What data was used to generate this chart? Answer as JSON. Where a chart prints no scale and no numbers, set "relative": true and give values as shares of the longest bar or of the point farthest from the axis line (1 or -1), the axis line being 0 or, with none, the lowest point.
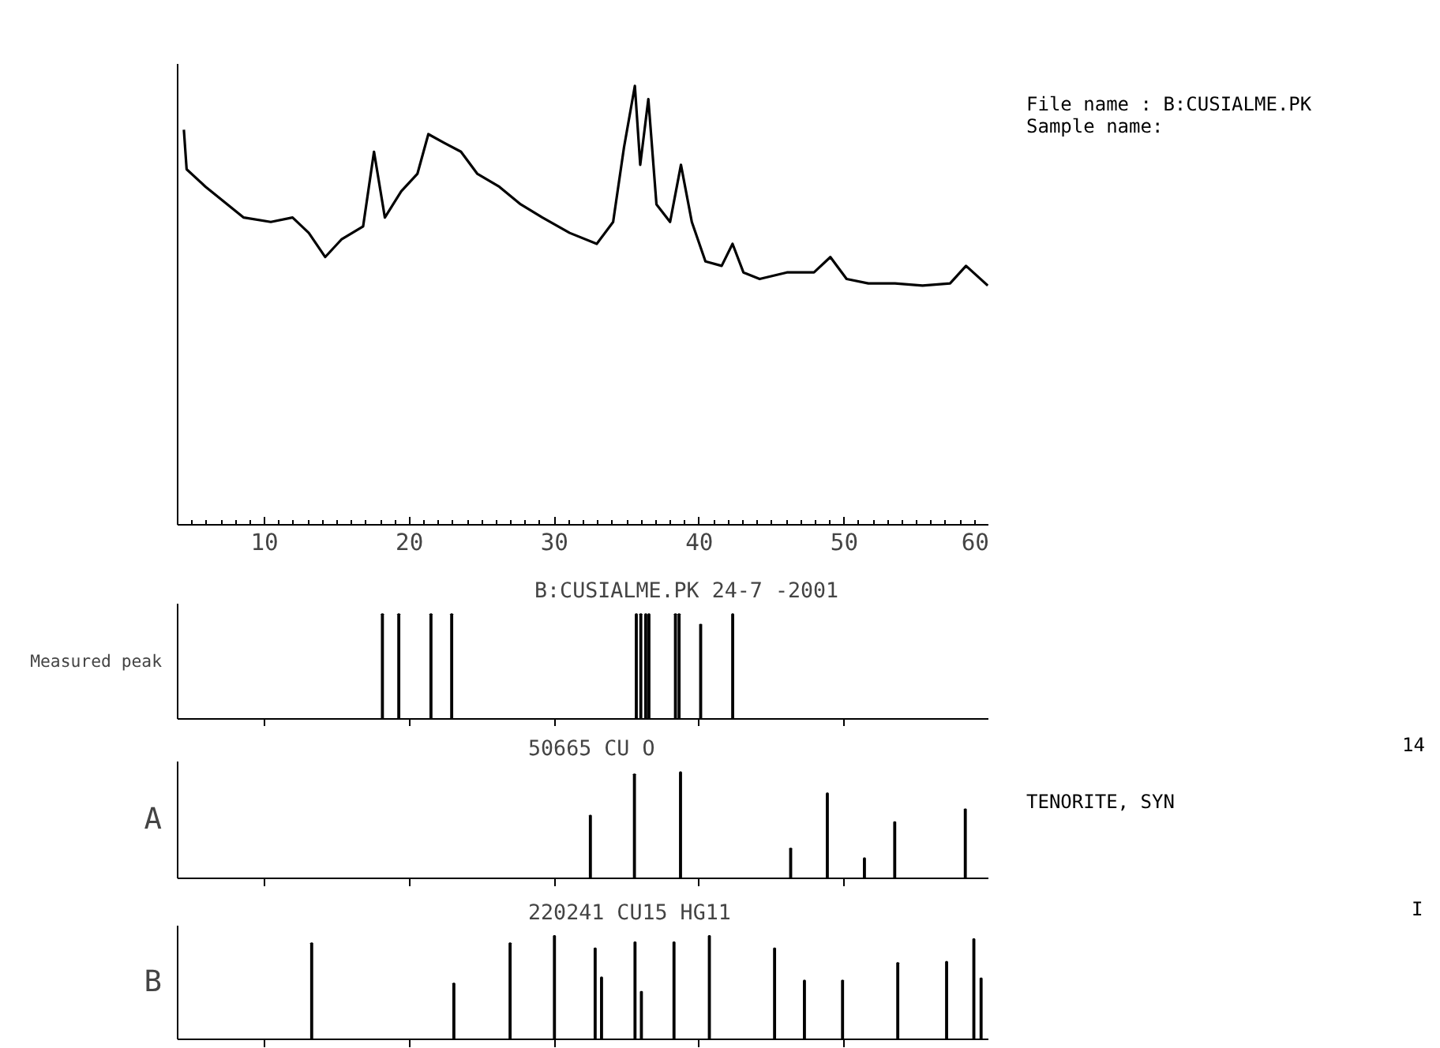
{
  "chart_data": [
    {
      "type": "line",
      "relative": true,
      "color": "#000000",
      "xlim": [
        4,
        60
      ],
      "xticks": [
        10,
        20,
        30,
        40,
        50,
        60
      ],
      "grid": false,
      "tick_labels": "x",
      "x": [
        4.43,
        4.62,
        5.93,
        7.43,
        8.56,
        10.43,
        11.93,
        13.05,
        14.18,
        15.3,
        16.8,
        17.55,
        18.3,
        19.43,
        20.55,
        21.3,
        22.4,
        23.55,
        24.67,
        26.2,
        27.67,
        29.17,
        31.05,
        32.92,
        34.05,
        34.8,
        35.55,
        35.92,
        36.48,
        37.04,
        37.98,
        38.73,
        39.48,
        40.42,
        41.54,
        42.29,
        43.04,
        44.16,
        46.04,
        47.91,
        49.04,
        50.16,
        51.66,
        53.5,
        55.4,
        57.3,
        58.4,
        59.9
      ],
      "values": [
        0.9,
        0.81,
        0.77,
        0.73,
        0.7,
        0.69,
        0.7,
        0.665,
        0.61,
        0.65,
        0.68,
        0.85,
        0.7,
        0.76,
        0.8,
        0.89,
        0.87,
        0.85,
        0.8,
        0.77,
        0.73,
        0.7,
        0.665,
        0.64,
        0.69,
        0.86,
        1.0,
        0.82,
        0.97,
        0.73,
        0.69,
        0.82,
        0.69,
        0.6,
        0.59,
        0.64,
        0.575,
        0.56,
        0.575,
        0.575,
        0.61,
        0.56,
        0.55,
        0.55,
        0.545,
        0.55,
        0.59,
        0.545
      ],
      "annotations": [
        "File name : B:CUSIALME.PK",
        "Sample name:"
      ]
    },
    {
      "type": "bar",
      "relative": true,
      "color": "#000000",
      "xlim": [
        4,
        60
      ],
      "xticks": [
        {
          "value": 10,
          "label": null
        },
        {
          "value": 20,
          "label": null
        },
        {
          "value": 30,
          "label": null
        },
        {
          "value": 40,
          "label": null
        },
        {
          "value": 50,
          "label": null
        },
        {
          "value": 60,
          "label": null
        }
      ],
      "tick_labels": false,
      "grid": false,
      "ylabel": "Measured peak",
      "x": [
        18.13,
        19.26,
        21.48,
        22.91,
        35.65,
        35.96,
        36.3,
        36.52,
        38.35,
        38.6,
        40.09,
        42.3
      ],
      "values": [
        1,
        1,
        1,
        1,
        1,
        1,
        1,
        1,
        1,
        1,
        0.9,
        1
      ],
      "annotations": [
        "B:CUSIALME.PK 24-7 -2001"
      ]
    },
    {
      "type": "bar",
      "relative": true,
      "color": "#000000",
      "xlim": [
        4,
        60
      ],
      "xticks": [
        {
          "value": 10,
          "label": null
        },
        {
          "value": 20,
          "label": null
        },
        {
          "value": 30,
          "label": null
        },
        {
          "value": 40,
          "label": null
        },
        {
          "value": 50,
          "label": null
        },
        {
          "value": 60,
          "label": null
        }
      ],
      "tick_labels": false,
      "grid": false,
      "ylabel": "A",
      "x": [
        32.48,
        35.52,
        38.7,
        46.3,
        48.83,
        51.39,
        53.48,
        58.35
      ],
      "values": [
        0.59,
        0.98,
        1,
        0.28,
        0.8,
        0.19,
        0.53,
        0.65
      ],
      "annotations": [
        "50665  CU O",
        "14",
        "TENORITE, SYN"
      ]
    },
    {
      "type": "bar",
      "relative": true,
      "color": "#000000",
      "xlim": [
        4,
        60
      ],
      "xticks": [
        {
          "value": 10,
          "label": null
        },
        {
          "value": 20,
          "label": null
        },
        {
          "value": 30,
          "label": null
        },
        {
          "value": 40,
          "label": null
        },
        {
          "value": 50,
          "label": null
        },
        {
          "value": 60,
          "label": null
        }
      ],
      "tick_labels": false,
      "grid": false,
      "ylabel": "B",
      "x": [
        13.25,
        23.06,
        26.94,
        30,
        32.81,
        33.25,
        35.56,
        36,
        38.25,
        40.69,
        45.19,
        47.25,
        49.88,
        53.69,
        57.06,
        58.94,
        59.44
      ],
      "values": [
        0.93,
        0.54,
        0.93,
        1,
        0.88,
        0.6,
        0.94,
        0.46,
        0.94,
        1,
        0.88,
        0.57,
        0.57,
        0.74,
        0.75,
        0.97,
        0.59
      ],
      "annotations": [
        "220241  CU15  HG11",
        "I"
      ]
    }
  ]
}
